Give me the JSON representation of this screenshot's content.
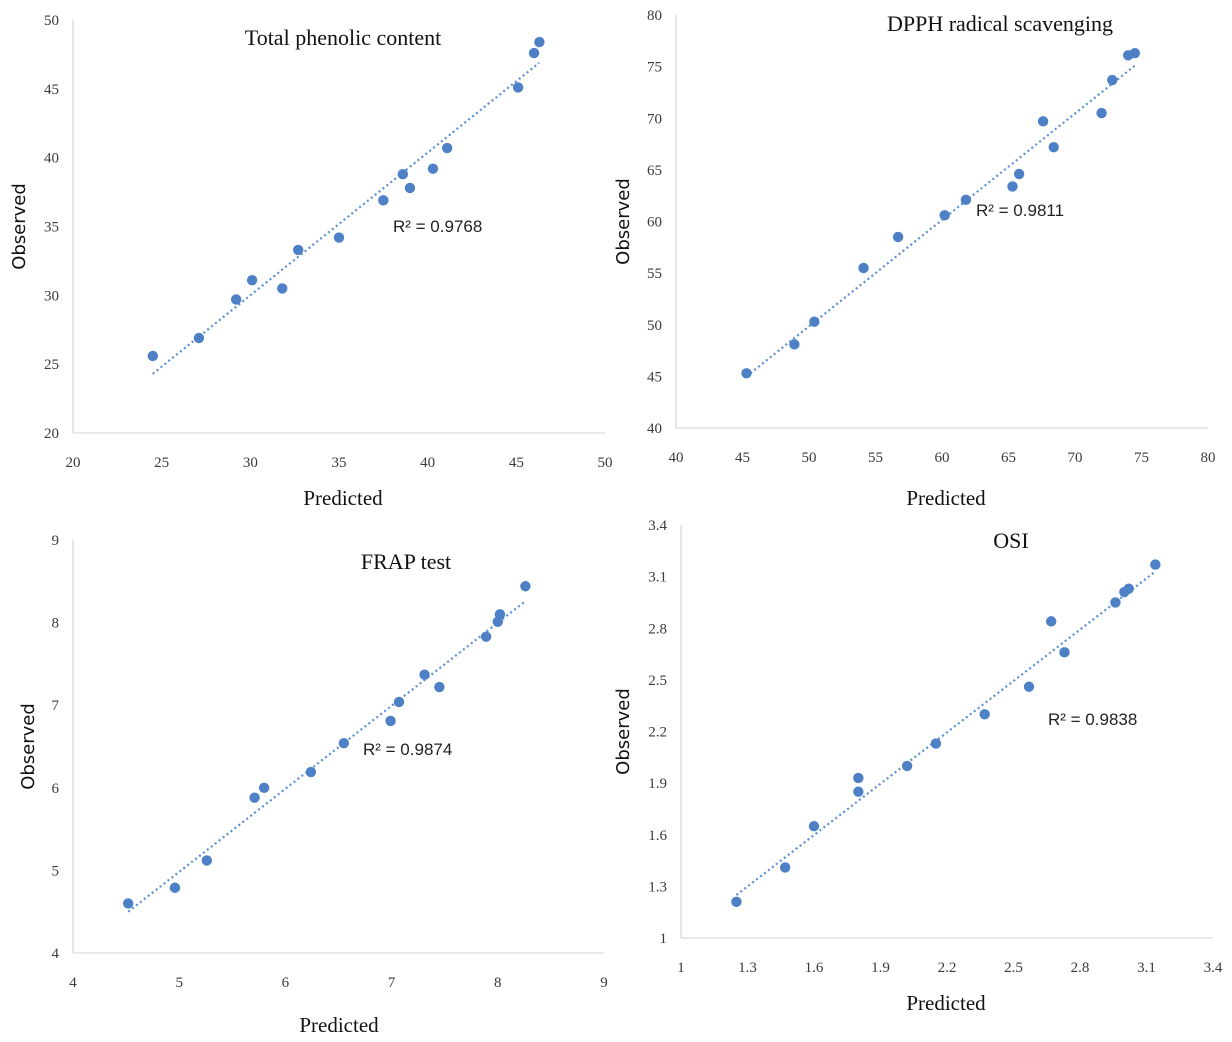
{
  "accent": "#4e80c6",
  "chart_data": [
    {
      "type": "scatter",
      "title": "Total phenolic content",
      "xlabel": "Predicted",
      "ylabel": "Observed",
      "xlim": [
        20,
        50
      ],
      "ylim": [
        20,
        50
      ],
      "xticks": [
        "20",
        "25",
        "30",
        "35",
        "40",
        "45",
        "50"
      ],
      "yticks": [
        "20",
        "25",
        "30",
        "35",
        "40",
        "45",
        "50"
      ],
      "x": [
        24.5,
        27.1,
        29.2,
        30.1,
        31.8,
        32.7,
        35.0,
        37.5,
        38.6,
        39.0,
        40.3,
        41.1,
        45.1,
        46.0,
        46.3
      ],
      "y": [
        25.6,
        26.9,
        29.7,
        31.1,
        30.5,
        33.3,
        34.2,
        36.9,
        38.8,
        37.8,
        39.2,
        40.7,
        45.1,
        47.6,
        48.4
      ],
      "trendline": {
        "x": [
          24.5,
          46.3
        ],
        "y": [
          24.3,
          46.9
        ]
      },
      "annotation": "R² = 0.9768",
      "grid": false,
      "legend": "none"
    },
    {
      "type": "scatter",
      "title": "DPPH radical scavenging",
      "xlabel": "Predicted",
      "ylabel": "Observed",
      "xlim": [
        40,
        80
      ],
      "ylim": [
        40,
        80
      ],
      "xticks": [
        "40",
        "45",
        "50",
        "55",
        "60",
        "65",
        "70",
        "75",
        "80"
      ],
      "yticks": [
        "40",
        "45",
        "50",
        "55",
        "60",
        "65",
        "70",
        "75",
        "80"
      ],
      "x": [
        45.3,
        48.9,
        50.4,
        54.1,
        56.7,
        60.2,
        61.8,
        65.3,
        65.8,
        67.6,
        68.4,
        72.0,
        72.8,
        74.0,
        74.5
      ],
      "y": [
        45.3,
        48.1,
        50.3,
        55.5,
        58.5,
        60.6,
        62.1,
        63.4,
        64.6,
        69.7,
        67.2,
        70.5,
        73.7,
        76.1,
        76.3
      ],
      "trendline": {
        "x": [
          45.3,
          74.5
        ],
        "y": [
          45.0,
          75.1
        ]
      },
      "annotation": "R² = 0.9811",
      "grid": false,
      "legend": "none"
    },
    {
      "type": "scatter",
      "title": "FRAP test",
      "xlabel": "Predicted",
      "ylabel": "Observed",
      "xlim": [
        4,
        9
      ],
      "ylim": [
        4,
        9
      ],
      "xticks": [
        "4",
        "5",
        "6",
        "7",
        "8",
        "9"
      ],
      "yticks": [
        "4",
        "5",
        "6",
        "7",
        "8",
        "9"
      ],
      "x": [
        4.52,
        4.96,
        5.26,
        5.71,
        5.8,
        6.24,
        6.55,
        6.99,
        7.07,
        7.31,
        7.45,
        7.89,
        8.0,
        8.02,
        8.26
      ],
      "y": [
        4.6,
        4.79,
        5.12,
        5.88,
        6.0,
        6.19,
        6.54,
        6.81,
        7.04,
        7.37,
        7.22,
        7.83,
        8.01,
        8.1,
        8.44
      ],
      "trendline": {
        "x": [
          4.52,
          8.26
        ],
        "y": [
          4.5,
          8.26
        ]
      },
      "annotation": "R² = 0.9874",
      "grid": false,
      "legend": "none"
    },
    {
      "type": "scatter",
      "title": "OSI",
      "xlabel": "Predicted",
      "ylabel": "Observed",
      "xlim": [
        1,
        3.4
      ],
      "ylim": [
        1,
        3.4
      ],
      "xticks": [
        "1",
        "1.3",
        "1.6",
        "1.9",
        "2.2",
        "2.5",
        "2.8",
        "3.1",
        "3.4"
      ],
      "yticks": [
        "1",
        "1.3",
        "1.6",
        "1.9",
        "2.2",
        "2.5",
        "2.8",
        "3.1",
        "3.4"
      ],
      "x": [
        1.25,
        1.47,
        1.6,
        1.8,
        1.8,
        2.02,
        2.15,
        2.37,
        2.57,
        2.67,
        2.73,
        2.96,
        3.0,
        3.02,
        3.14
      ],
      "y": [
        1.21,
        1.41,
        1.65,
        1.93,
        1.85,
        2.0,
        2.13,
        2.3,
        2.46,
        2.84,
        2.66,
        2.95,
        3.01,
        3.03,
        3.17
      ],
      "trendline": {
        "x": [
          1.25,
          3.14
        ],
        "y": [
          1.25,
          3.13
        ]
      },
      "annotation": "R² = 0.9838",
      "grid": false,
      "legend": "none"
    }
  ]
}
